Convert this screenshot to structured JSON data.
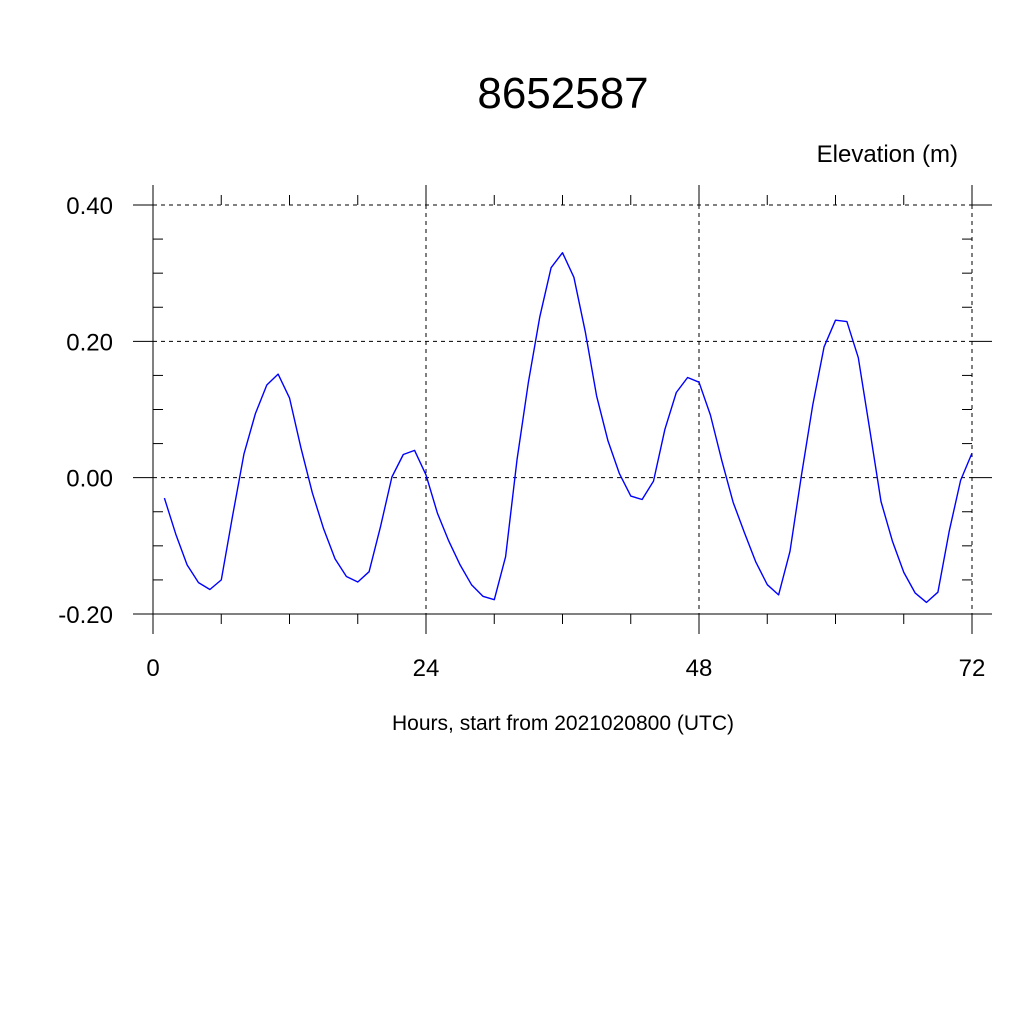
{
  "chart_data": {
    "type": "line",
    "title": "8652587",
    "ylabel": "Elevation (m)",
    "xlabel": "Hours, start from 2021020800 (UTC)",
    "xlim": [
      0,
      72
    ],
    "ylim": [
      -0.2,
      0.4
    ],
    "x_ticks": [
      0,
      24,
      48,
      72
    ],
    "x_tick_labels": [
      "0",
      "24",
      "48",
      "72"
    ],
    "y_ticks": [
      -0.2,
      0.0,
      0.2,
      0.4
    ],
    "y_tick_labels": [
      "-0.20",
      "0.00",
      "0.20",
      "0.40"
    ],
    "grid": true,
    "series": [
      {
        "color": "#0000ff",
        "x": [
          1,
          2,
          3,
          4,
          5,
          6,
          7,
          8,
          9,
          10,
          11,
          12,
          13,
          14,
          15,
          16,
          17,
          18,
          19,
          20,
          21,
          22,
          23,
          24,
          25,
          26,
          27,
          28,
          29,
          30,
          31,
          32,
          33,
          34,
          35,
          36,
          37,
          38,
          39,
          40,
          41,
          42,
          43,
          44,
          45,
          46,
          47,
          48,
          49,
          50,
          51,
          52,
          53,
          54,
          55,
          56,
          57,
          58,
          59,
          60,
          61,
          62,
          63,
          64,
          65,
          66,
          67,
          68,
          69,
          70,
          71,
          72
        ],
        "y": [
          -0.03,
          -0.083,
          -0.128,
          -0.154,
          -0.164,
          -0.15,
          -0.056,
          0.035,
          0.094,
          0.136,
          0.152,
          0.117,
          0.044,
          -0.022,
          -0.075,
          -0.119,
          -0.145,
          -0.153,
          -0.138,
          -0.072,
          0.001,
          0.034,
          0.04,
          0.004,
          -0.052,
          -0.093,
          -0.128,
          -0.157,
          -0.174,
          -0.179,
          -0.116,
          0.026,
          0.14,
          0.236,
          0.308,
          0.33,
          0.294,
          0.214,
          0.12,
          0.054,
          0.006,
          -0.027,
          -0.032,
          -0.005,
          0.071,
          0.125,
          0.147,
          0.14,
          0.092,
          0.025,
          -0.036,
          -0.081,
          -0.124,
          -0.157,
          -0.172,
          -0.108,
          0.003,
          0.107,
          0.192,
          0.231,
          0.229,
          0.176,
          0.072,
          -0.035,
          -0.093,
          -0.139,
          -0.169,
          -0.183,
          -0.168,
          -0.078,
          -0.004,
          0.036
        ]
      }
    ]
  }
}
